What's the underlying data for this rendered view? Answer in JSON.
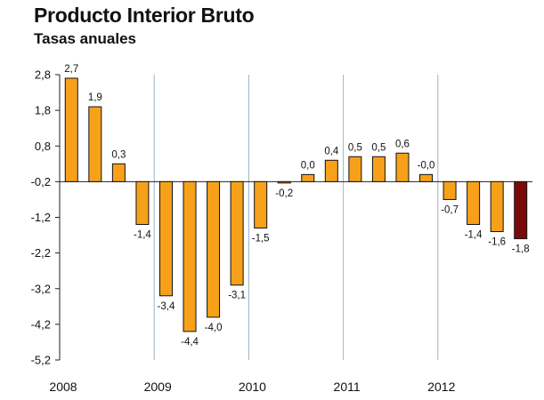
{
  "chart_data": {
    "type": "bar",
    "title": "Producto Interior Bruto",
    "subtitle": "Tasas anuales",
    "xlabel": "",
    "ylabel": "",
    "ylim": [
      -5.2,
      2.8
    ],
    "y_ticks": [
      "2,8",
      "1,8",
      "0,8",
      "-0,2",
      "-1,2",
      "-2,2",
      "-3,2",
      "-4,2",
      "-5,2"
    ],
    "y_tick_values": [
      2.8,
      1.8,
      0.8,
      -0.2,
      -1.2,
      -2.2,
      -3.2,
      -4.2,
      -5.2
    ],
    "baseline": -0.2,
    "year_labels": [
      "2008",
      "2009",
      "2010",
      "2011",
      "2012"
    ],
    "quarters_per_year": 4,
    "values": [
      2.7,
      1.9,
      0.3,
      -1.4,
      -3.4,
      -4.4,
      -4.0,
      -3.1,
      -1.5,
      -0.2,
      0.0,
      0.4,
      0.5,
      0.5,
      0.6,
      -0.0,
      -0.7,
      -1.4,
      -1.6,
      -1.8
    ],
    "value_labels": [
      "2,7",
      "1,9",
      "0,3",
      "-1,4",
      "-3,4",
      "-4,4",
      "-4,0",
      "-3,1",
      "-1,5",
      "-0,2",
      "0,0",
      "0,4",
      "0,5",
      "0,5",
      "0,6",
      "-0,0",
      "-0,7",
      "-1,4",
      "-1,6",
      "-1,8"
    ],
    "colors": {
      "bar": "#F7A11A",
      "highlight": "#7A0A0A",
      "bar_outline": "#111111",
      "separator": "#9BB3CC",
      "axis": "#222222"
    },
    "highlight_index": 19
  }
}
